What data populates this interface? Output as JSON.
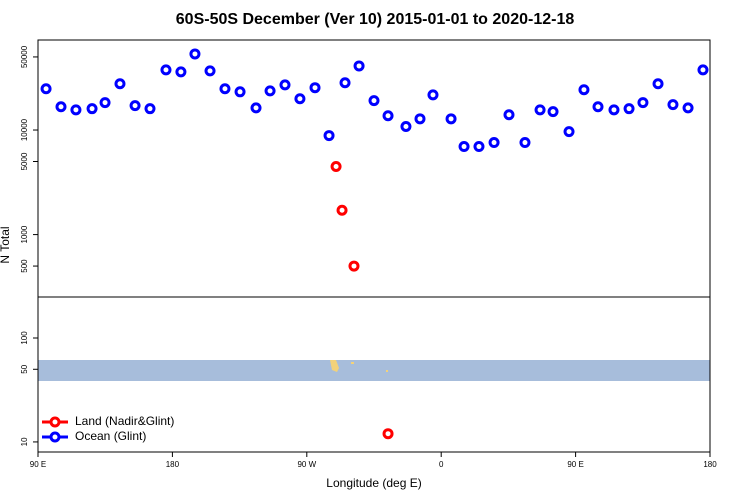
{
  "chart_data": [
    {
      "type": "scatter",
      "title": "60S-50S December (Ver 10)   2015-01-01 to 2020-12-18",
      "ylabel": "N Total",
      "xlim": [
        90,
        540
      ],
      "ylim": [
        253,
        72600
      ],
      "log_y": true,
      "yticks": [
        500,
        1000,
        5000,
        10000,
        50000
      ],
      "series": [
        {
          "color": "#ff0000",
          "x": [
            289.6,
            293.6,
            301.6
          ],
          "values": [
            4480,
            1710,
            500
          ]
        },
        {
          "color": "#0000ff",
          "x": [
            95.4,
            105.4,
            115.4,
            126.2,
            134.9,
            144.9,
            155,
            165,
            175.7,
            185.7,
            195.1,
            205.2,
            215.2,
            225.3,
            236,
            245.4,
            255.4,
            265.4,
            275.5,
            284.9,
            295.6,
            305,
            315,
            324.4,
            336.4,
            345.8,
            354.5,
            366.6,
            375.3,
            385.3,
            395.4,
            405.4,
            416.1,
            426.2,
            434.9,
            445.6,
            455.6,
            465,
            475.7,
            485.8,
            495.1,
            505.2,
            515.2,
            525.3,
            535.3
          ],
          "values": [
            24800,
            16700,
            15600,
            16000,
            18300,
            27700,
            17100,
            16000,
            37600,
            36000,
            53400,
            36800,
            24800,
            23200,
            16300,
            23700,
            27000,
            19900,
            25400,
            8850,
            28300,
            41000,
            19100,
            13700,
            10800,
            12800,
            21700,
            12800,
            6950,
            6950,
            7590,
            14000,
            7590,
            15600,
            15000,
            9660,
            24300,
            16700,
            15600,
            16000,
            18300,
            27700,
            17500,
            16300,
            37600
          ]
        }
      ]
    },
    {
      "type": "scatter",
      "xlabel": "Longitude (deg E)",
      "xlim": [
        90,
        540
      ],
      "ylim": [
        8,
        248
      ],
      "log_y": true,
      "xticks": [
        {
          "value": 90,
          "label": "90 E"
        },
        180,
        {
          "value": 270,
          "label": "90 W"
        },
        0,
        {
          "value": 450,
          "label": "90 E"
        },
        {
          "value": 540,
          "label": "180"
        }
      ],
      "yticks": [
        10,
        50,
        100
      ],
      "legend": "bottomleft",
      "series": [
        {
          "name": "Land (Nadir&Glint)",
          "color": "#ff0000",
          "x": [
            324.4
          ],
          "values": [
            12
          ]
        },
        {
          "name": "Ocean (Glint)",
          "color": "#0000ff",
          "x": [],
          "values": []
        }
      ]
    }
  ]
}
